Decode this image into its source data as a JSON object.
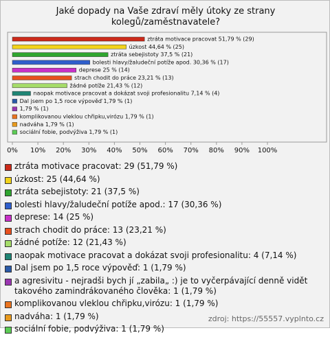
{
  "chart_data": {
    "type": "bar",
    "orientation": "horizontal",
    "title": "Jaké dopady na Vaše zdraví měly útoky ze strany kolegů/zaměstnavatele?",
    "categories": [
      "ztráta motivace pracovat",
      "úzkost",
      "ztráta sebejistoty",
      "bolesti hlavy/žaludeční potíže apod.",
      "deprese",
      "strach chodit do práce",
      "žádné potíže",
      "naopak motivace pracovat a dokázat svoji profesionalitu",
      "Dal jsem po 1,5 roce výpověď",
      "a agresivitu - nejradši bych jí „zabila„ :) je to vyčerpávající denně vidět takového zamindrákovaného člověka",
      "komplikovanou vleklou chřipku,virózu",
      "nadváha",
      "sociální fobie, podvýživa"
    ],
    "values": [
      51.79,
      44.64,
      37.5,
      30.36,
      25,
      23.21,
      21.43,
      7.14,
      1.79,
      1.79,
      1.79,
      1.79,
      1.79
    ],
    "value_labels": [
      "ztráta motivace pracovat 51,79 % (29)",
      "úzkost 44,64 % (25)",
      "ztráta sebejistoty 37,5 % (21)",
      "bolesti hlavy/žaludeční potíže apod. 30,36 % (17)",
      "deprese 25 % (14)",
      "strach chodit do práce 23,21 % (13)",
      "žádné potíže 21,43 % (12)",
      "naopak motivace pracovat a dokázat svoji profesionalitu 7,14 % (4)",
      "Dal jsem po 1,5 roce výpověď 1,79 % (1)",
      "1,79 % (1)",
      "komplikovanou vleklou chřipku,virózu 1,79 % (1)",
      "nadváha 1,79 % (1)",
      "sociální fobie, podvýživa 1,79 % (1)"
    ],
    "legend_labels": [
      "ztráta motivace pracovat: 29 (51,79 %)",
      "úzkost: 25 (44,64 %)",
      "ztráta sebejistoty: 21 (37,5 %)",
      "bolesti hlavy/žaludeční potíže apod.: 17 (30,36 %)",
      "deprese: 14 (25 %)",
      "strach chodit do práce: 13 (23,21 %)",
      "žádné potíže: 12 (21,43 %)",
      "naopak motivace pracovat a dokázat svoji profesionalitu: 4 (7,14 %)",
      "Dal jsem po 1,5 roce výpověď: 1 (1,79 %)",
      "a agresivitu - nejradši bych jí „zabila„ :) je to vyčerpávající denně vidět takového zamindrákovaného člověka: 1 (1,79 %)",
      "komplikovanou vleklou chřipku,virózu: 1 (1,79 %)",
      "nadváha: 1 (1,79 %)",
      "sociální fobie, podvýživa: 1 (1,79 %)"
    ],
    "colors": [
      "#cc2a1a",
      "#f2d31b",
      "#2fa52f",
      "#2f5fcc",
      "#c830c8",
      "#e8501e",
      "#a6dd6a",
      "#1f8575",
      "#2a5aa8",
      "#9a35b0",
      "#ea7420",
      "#e89a1e",
      "#5ccc55"
    ],
    "xlim": [
      0,
      100
    ],
    "xticks": [
      {
        "value": 0,
        "label": "0%"
      },
      {
        "value": 10,
        "label": "10%"
      },
      {
        "value": 20,
        "label": "20%"
      },
      {
        "value": 30,
        "label": "30%"
      },
      {
        "value": 40,
        "label": "40%"
      },
      {
        "value": 50,
        "label": "50%"
      },
      {
        "value": 60,
        "label": "60%"
      },
      {
        "value": 70,
        "label": "70%"
      },
      {
        "value": 80,
        "label": "80%"
      },
      {
        "value": 90,
        "label": "90%"
      },
      {
        "value": 100,
        "label": "100%"
      }
    ],
    "source": "zdroj: https://55557.vyplnto.cz"
  }
}
